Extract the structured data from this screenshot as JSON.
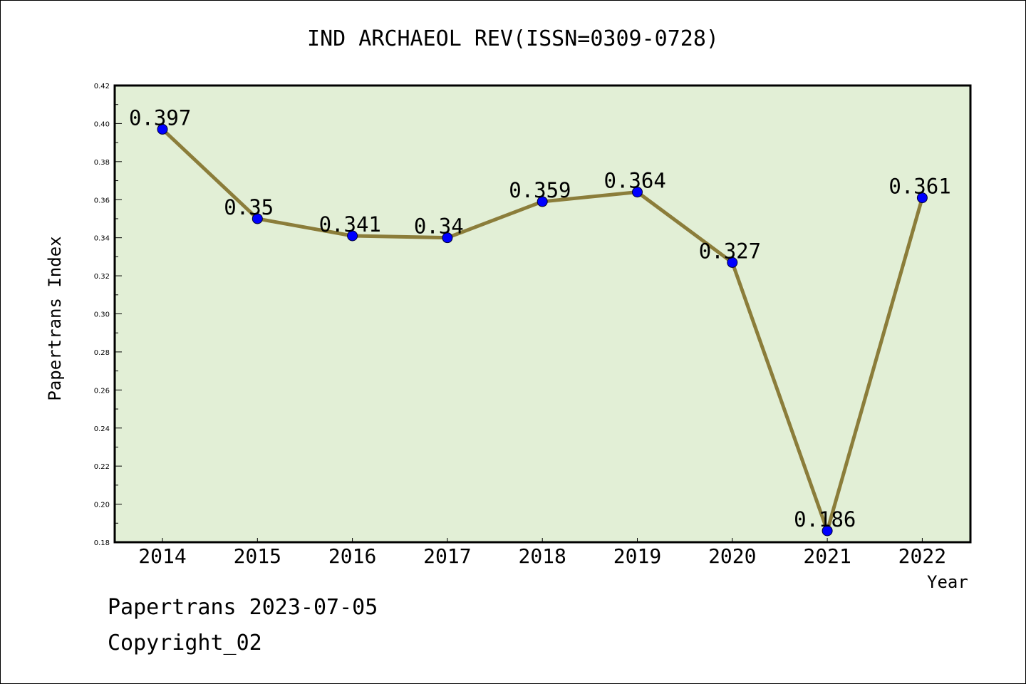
{
  "chart_data": {
    "type": "line",
    "title": "IND ARCHAEOL REV(ISSN=0309-0728)",
    "xlabel": "Year",
    "ylabel": "Papertrans Index",
    "categories": [
      "2014",
      "2015",
      "2016",
      "2017",
      "2018",
      "2019",
      "2020",
      "2021",
      "2022"
    ],
    "values": [
      0.397,
      0.35,
      0.341,
      0.34,
      0.359,
      0.364,
      0.327,
      0.186,
      0.361
    ],
    "value_labels": [
      "0.397",
      "0.35",
      "0.341",
      "0.34",
      "0.359",
      "0.364",
      "0.327",
      "0.186",
      "0.361"
    ],
    "ylim": [
      0.18,
      0.42
    ],
    "yticks": [
      "0.18",
      "0.20",
      "0.22",
      "0.24",
      "0.26",
      "0.28",
      "0.30",
      "0.32",
      "0.34",
      "0.36",
      "0.38",
      "0.40",
      "0.42"
    ],
    "grid": false,
    "colors": {
      "plot_background": "#e2efd6",
      "line": "#8b7d3a",
      "marker": "#0000ff"
    }
  },
  "footer": {
    "source": "Papertrans 2023-07-05",
    "copyright": "Copyright_02"
  }
}
